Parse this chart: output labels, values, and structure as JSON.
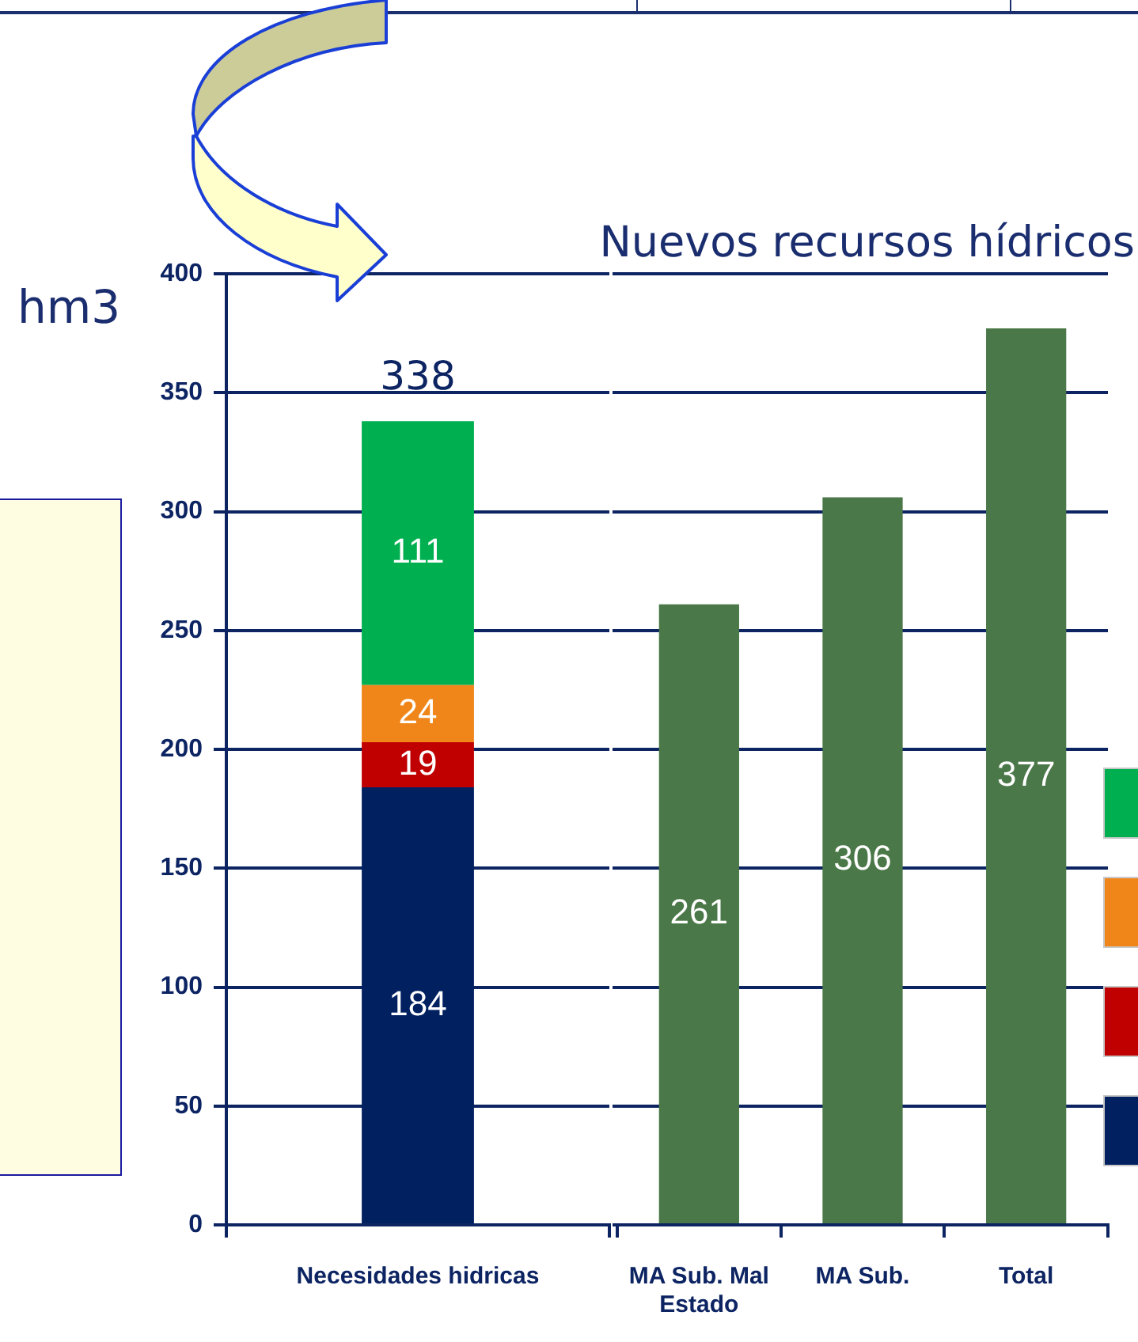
{
  "chart_data": [
    {
      "type": "bar",
      "categories": [
        "Necesidades hidricas"
      ],
      "stacked": true,
      "series": [
        {
          "color": "#002060",
          "values": [
            184
          ]
        },
        {
          "color": "#c00000",
          "values": [
            19
          ]
        },
        {
          "color": "#f08519",
          "values": [
            24
          ]
        },
        {
          "color": "#00b050",
          "values": [
            111
          ]
        }
      ],
      "ylabel": "hm3",
      "ylim": [
        0,
        400
      ],
      "yticks": [
        0,
        50,
        100,
        150,
        200,
        250,
        300,
        350,
        400
      ],
      "grid": "y",
      "data_labels": true,
      "totals": [
        "338"
      ]
    },
    {
      "type": "bar",
      "title": "Nuevos recursos hídricos",
      "categories": [
        "MA Sub. Mal Estado",
        "MA Sub.",
        "Total"
      ],
      "values": [
        261,
        306,
        377
      ],
      "color": "#4a7848",
      "ylim": [
        0,
        400
      ],
      "yticks": [
        0,
        50,
        100,
        150,
        200,
        250,
        300,
        350,
        400
      ],
      "tick_labels": "x",
      "grid": "y",
      "data_labels": true
    }
  ]
}
